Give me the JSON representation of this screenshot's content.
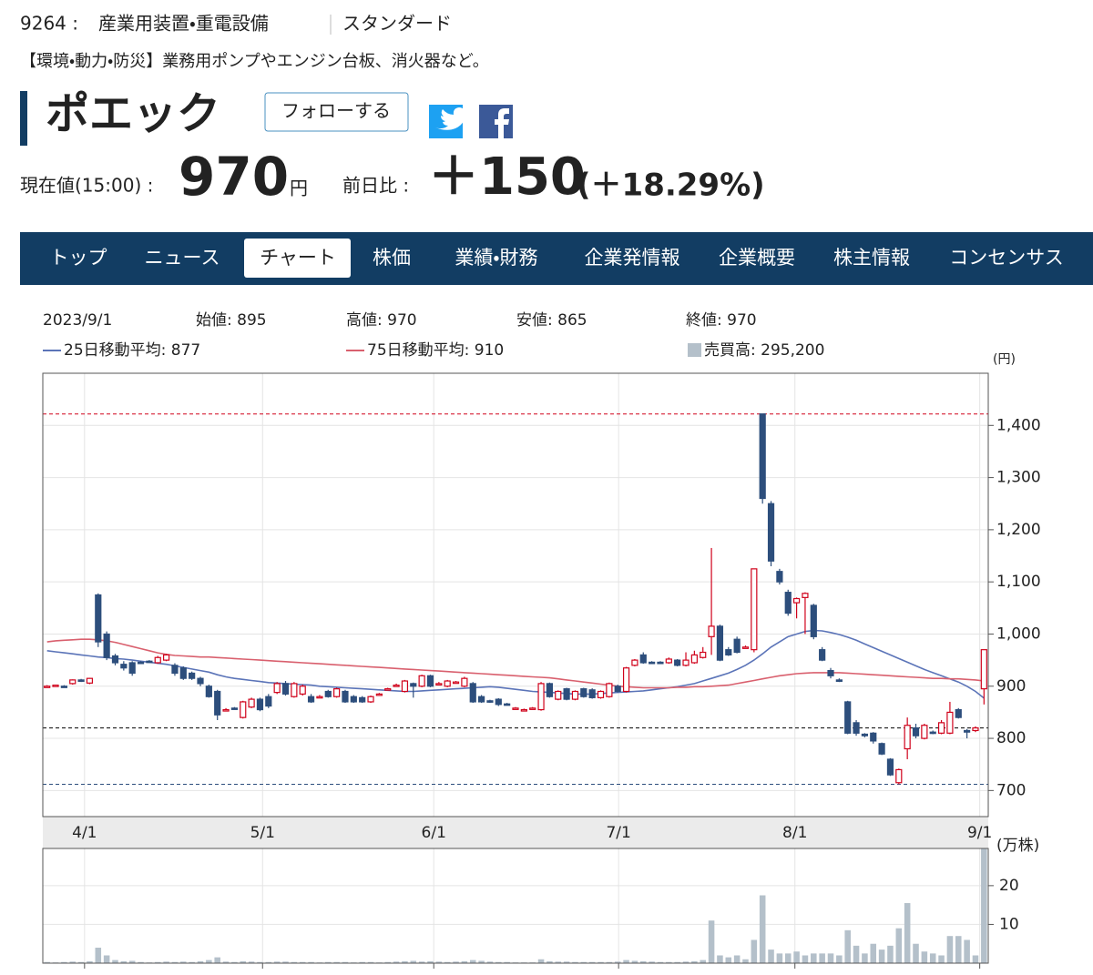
{
  "header": {
    "code": "9264 :",
    "sector": "産業用装置・重電設備",
    "market": "スタンダード",
    "description": "【環境・動力・防災】業務用ポンプやエンジン台板、消火器など。",
    "name": "ポエック",
    "follow": "フォローする",
    "price_label": "現在値(15:00) :",
    "price": "970",
    "price_unit": "円",
    "change_label": "前日比 :",
    "change": "＋150",
    "change_pct": "(＋18.29%)"
  },
  "nav": [
    "トップ",
    "ニュース",
    "チャート",
    "株価",
    "業績・財務",
    "企業発情報",
    "企業概要",
    "株主情報",
    "コンセンサス"
  ],
  "summary": {
    "date": "2023/9/1",
    "open": "始値: 895",
    "high": "高値: 970",
    "low": "安値: 865",
    "close": "終値: 970",
    "ma25": "25日移動平均: 877",
    "ma75": "75日移動平均: 910",
    "volume": "売買高: 295,200"
  },
  "chart_data": {
    "type": "candlestick",
    "unit_label": "(円)",
    "xlim": [
      0,
      111
    ],
    "xticks": [
      {
        "value": 4.9,
        "label": "4/1"
      },
      {
        "value": 25.8,
        "label": "5/1"
      },
      {
        "value": 45.9,
        "label": "6/1"
      },
      {
        "value": 67.6,
        "label": "7/1"
      },
      {
        "value": 88.3,
        "label": "8/1"
      },
      {
        "value": 110.0,
        "label": "9/1"
      }
    ],
    "ylim": [
      650,
      1500
    ],
    "yticks": [
      700,
      800,
      900,
      {
        "value": 1000,
        "label": "1,000"
      },
      {
        "value": 1100,
        "label": "1,100"
      },
      {
        "value": 1200,
        "label": "1,200"
      },
      {
        "value": 1300,
        "label": "1,300"
      },
      {
        "value": 1400,
        "label": "1,400"
      }
    ],
    "grid": true,
    "up_color": "#d0021b",
    "down_color": "#2d4e7c",
    "open": [
      900,
      901,
      900,
      905,
      912,
      906,
      1075,
      1000,
      958,
      942,
      945,
      946,
      948,
      945,
      950,
      940,
      935,
      925,
      915,
      900,
      890,
      855,
      858,
      840,
      860,
      875,
      880,
      888,
      905,
      880,
      885,
      880,
      880,
      890,
      880,
      890,
      880,
      878,
      870,
      884,
      895,
      902,
      890,
      905,
      900,
      920,
      905,
      900,
      908,
      900,
      905,
      880,
      872,
      875,
      866,
      858,
      855,
      857,
      855,
      905,
      875,
      895,
      875,
      895,
      893,
      878,
      880,
      900,
      890,
      940,
      960,
      946,
      946,
      945,
      950,
      940,
      945,
      955,
      995,
      1015,
      970,
      990,
      975,
      970,
      1422,
      1250,
      1120,
      1080,
      1060,
      1070,
      1055,
      970,
      930,
      912,
      870,
      830,
      808,
      810,
      790,
      760,
      715,
      780,
      820,
      800,
      812,
      810,
      810,
      855,
      815,
      815,
      895
    ],
    "high": [
      902,
      903,
      902,
      913,
      914,
      916,
      1078,
      1005,
      962,
      948,
      948,
      948,
      950,
      958,
      962,
      944,
      938,
      928,
      918,
      903,
      893,
      858,
      860,
      872,
      878,
      878,
      885,
      908,
      910,
      908,
      903,
      885,
      883,
      893,
      897,
      893,
      883,
      881,
      882,
      887,
      897,
      905,
      912,
      907,
      922,
      922,
      908,
      912,
      910,
      918,
      908,
      883,
      874,
      877,
      868,
      860,
      857,
      860,
      908,
      907,
      892,
      897,
      892,
      897,
      896,
      892,
      907,
      903,
      937,
      952,
      965,
      948,
      948,
      955,
      952,
      965,
      968,
      975,
      1165,
      1018,
      975,
      995,
      978,
      1125,
      1422,
      1255,
      1125,
      1085,
      1070,
      1080,
      1058,
      975,
      935,
      915,
      872,
      835,
      810,
      812,
      792,
      762,
      742,
      840,
      828,
      828,
      815,
      835,
      870,
      858,
      818,
      823,
      970
    ],
    "low": [
      898,
      899,
      897,
      903,
      908,
      904,
      975,
      950,
      940,
      930,
      920,
      943,
      946,
      943,
      948,
      920,
      912,
      912,
      900,
      878,
      835,
      852,
      855,
      838,
      858,
      852,
      858,
      885,
      882,
      878,
      882,
      868,
      877,
      878,
      878,
      868,
      868,
      868,
      868,
      882,
      893,
      899,
      888,
      878,
      898,
      898,
      902,
      898,
      905,
      898,
      868,
      868,
      868,
      862,
      863,
      856,
      853,
      855,
      853,
      878,
      873,
      873,
      873,
      878,
      876,
      876,
      878,
      888,
      888,
      938,
      943,
      943,
      943,
      943,
      938,
      938,
      943,
      953,
      960,
      948,
      958,
      963,
      972,
      965,
      1250,
      1130,
      1095,
      1035,
      1030,
      1000,
      990,
      948,
      915,
      908,
      808,
      805,
      802,
      790,
      768,
      728,
      712,
      760,
      800,
      798,
      808,
      808,
      808,
      838,
      800,
      812,
      865
    ],
    "close": [
      900,
      902,
      899,
      912,
      910,
      915,
      985,
      955,
      945,
      935,
      925,
      945,
      947,
      955,
      960,
      925,
      915,
      915,
      905,
      880,
      845,
      855,
      857,
      870,
      875,
      855,
      862,
      905,
      885,
      905,
      900,
      870,
      880,
      880,
      895,
      870,
      870,
      870,
      880,
      885,
      895,
      902,
      910,
      900,
      920,
      900,
      905,
      910,
      908,
      915,
      870,
      870,
      870,
      865,
      865,
      858,
      855,
      858,
      905,
      880,
      890,
      875,
      890,
      880,
      878,
      890,
      905,
      890,
      935,
      950,
      945,
      945,
      945,
      952,
      940,
      950,
      960,
      965,
      1015,
      950,
      960,
      965,
      975,
      1125,
      1260,
      1140,
      1100,
      1040,
      1068,
      1078,
      995,
      950,
      920,
      910,
      810,
      810,
      805,
      795,
      770,
      730,
      740,
      825,
      805,
      825,
      810,
      830,
      850,
      840,
      812,
      820,
      970
    ],
    "series": [
      {
        "color": "#5b74b8",
        "values": [
          968,
          966,
          964,
          962,
          960,
          958,
          956,
          955,
          953,
          952,
          950,
          948,
          946,
          944,
          942,
          939,
          936,
          933,
          930,
          927,
          922,
          918,
          915,
          913,
          911,
          909,
          907,
          906,
          905,
          904,
          903,
          902,
          900,
          899,
          898,
          897,
          896,
          895,
          894,
          893,
          892,
          891,
          890,
          890,
          891,
          892,
          893,
          894,
          895,
          896,
          897,
          898,
          899,
          898,
          896,
          894,
          892,
          890,
          889,
          888,
          887,
          886,
          885,
          885,
          885,
          886,
          887,
          888,
          889,
          890,
          891,
          893,
          895,
          897,
          899,
          902,
          905,
          910,
          915,
          920,
          925,
          932,
          940,
          950,
          962,
          975,
          985,
          995,
          1000,
          1005,
          1007,
          1006,
          1003,
          999,
          994,
          988,
          981,
          974,
          967,
          960,
          953,
          946,
          939,
          932,
          926,
          920,
          914,
          908,
          900,
          890,
          877
        ]
      },
      {
        "color": "#d9606e",
        "values": [
          985,
          987,
          988,
          989,
          990,
          990,
          989,
          987,
          984,
          980,
          976,
          972,
          968,
          964,
          961,
          959,
          958,
          957,
          956,
          956,
          955,
          954,
          953,
          952,
          951,
          950,
          949,
          948,
          947,
          946,
          945,
          944,
          943,
          942,
          941,
          940,
          939,
          938,
          937,
          936,
          935,
          934,
          933,
          932,
          931,
          930,
          929,
          928,
          927,
          926,
          925,
          924,
          923,
          922,
          921,
          920,
          919,
          918,
          917,
          916,
          914,
          912,
          910,
          908,
          906,
          904,
          902,
          900,
          899,
          898,
          897,
          897,
          897,
          897,
          898,
          898,
          899,
          899,
          900,
          901,
          902,
          905,
          908,
          911,
          914,
          917,
          920,
          922,
          924,
          925,
          926,
          926,
          926,
          926,
          925,
          924,
          923,
          922,
          921,
          920,
          919,
          918,
          917,
          916,
          915,
          915,
          914,
          914,
          913,
          912,
          910
        ]
      }
    ],
    "reference_lines": [
      {
        "value": 1422,
        "color": "#d0021b"
      },
      {
        "value": 820,
        "color": "#000000"
      },
      {
        "value": 712,
        "color": "#2d4e7c"
      }
    ],
    "volume": {
      "unit_label": "(万株)",
      "ylim": [
        0,
        29.6
      ],
      "yticks": [
        10,
        20
      ],
      "color": "#b4c0ca",
      "values": [
        0.3,
        0.2,
        0.3,
        0.4,
        0.3,
        0.5,
        4.0,
        2.0,
        0.8,
        0.5,
        0.6,
        0.3,
        0.2,
        0.3,
        0.4,
        0.3,
        0.4,
        0.3,
        0.5,
        0.8,
        1.5,
        0.4,
        0.3,
        0.5,
        0.4,
        0.3,
        0.3,
        0.4,
        0.4,
        0.3,
        0.3,
        0.3,
        0.2,
        0.3,
        0.3,
        0.3,
        0.2,
        0.3,
        0.3,
        0.2,
        0.3,
        0.4,
        0.5,
        0.6,
        0.4,
        0.5,
        0.4,
        0.3,
        0.4,
        0.5,
        0.8,
        0.6,
        0.4,
        0.3,
        0.3,
        0.2,
        0.2,
        0.2,
        1.0,
        0.5,
        0.4,
        0.4,
        0.3,
        0.3,
        0.3,
        0.3,
        0.3,
        0.4,
        0.8,
        0.6,
        0.5,
        0.4,
        0.3,
        0.3,
        0.3,
        0.4,
        0.5,
        0.8,
        11.0,
        2.0,
        1.5,
        2.0,
        1.0,
        6.0,
        17.5,
        3.5,
        2.5,
        2.5,
        3.0,
        2.0,
        2.5,
        2.5,
        2.5,
        2.0,
        8.5,
        4.5,
        2.5,
        5.0,
        3.5,
        4.5,
        9.0,
        15.5,
        5.0,
        3.0,
        2.5,
        2.0,
        7.0,
        7.0,
        6.0,
        2.0,
        29.52
      ]
    }
  }
}
